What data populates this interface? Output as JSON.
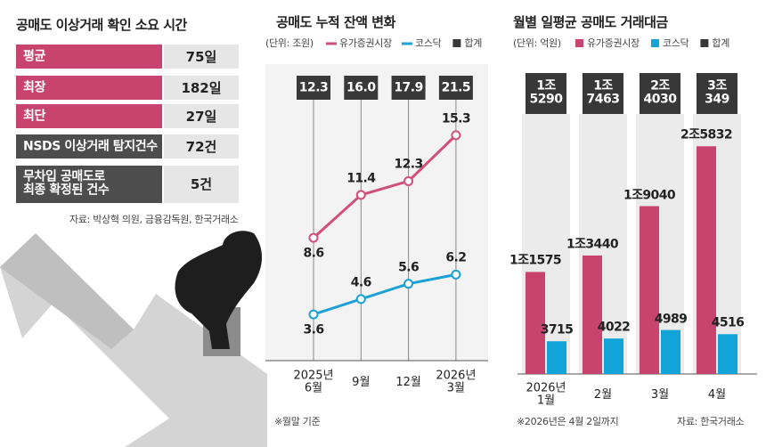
{
  "table": {
    "title": "공매도 이상거래 확인 소요 시간",
    "rows": [
      [
        "평균",
        "75일"
      ],
      [
        "최장",
        "182일"
      ],
      [
        "최단",
        "27일"
      ],
      [
        "NSDS 이상거래 탐지건수",
        "72건"
      ],
      [
        "무차입 공매도로\n최종 확정된 건수",
        "5건"
      ]
    ],
    "source": "자료: 박상혁 의원, 금융감독원, 한국거래소"
  },
  "chart_data": [
    {
      "type": "line",
      "title": "공매도 누적 잔액 변화",
      "unit": "(단위: 조원)",
      "categories": [
        "2025년\n6월",
        "9월",
        "12월",
        "2026년\n3월"
      ],
      "series": [
        {
          "name": "유가증권시장",
          "color": "#d24f7b",
          "values": [
            8.6,
            11.4,
            12.3,
            15.3
          ]
        },
        {
          "name": "코스닥",
          "color": "#1ba1d6",
          "values": [
            3.6,
            4.6,
            5.6,
            6.2
          ]
        },
        {
          "name": "합계",
          "color": "#383838",
          "mark": "box",
          "values": [
            12.3,
            16.0,
            17.9,
            21.5
          ],
          "value_labels": [
            "12.3",
            "16.0",
            "17.9",
            "21.5"
          ]
        }
      ],
      "note": "※월말 기준"
    },
    {
      "type": "bar",
      "title": "월별 일평균 공매도 거래대금",
      "unit": "(단위: 억원)",
      "categories": [
        "2026년\n1월",
        "2월",
        "3월",
        "4월"
      ],
      "series": [
        {
          "name": "유가증권시장",
          "color": "#c9436f",
          "values": [
            11575,
            13440,
            19040,
            25832
          ],
          "value_labels": [
            "1조1575",
            "1조3440",
            "1조9040",
            "2조5832"
          ]
        },
        {
          "name": "코스닥",
          "color": "#12a4d8",
          "values": [
            3715,
            4022,
            4989,
            4516
          ]
        },
        {
          "name": "합계",
          "color": "#383838",
          "mark": "box",
          "values": [
            15290,
            17463,
            24030,
            30349
          ],
          "value_labels": [
            "1조\n5290",
            "1조\n7463",
            "2조\n4030",
            "3조\n349"
          ]
        }
      ],
      "note": "※2026년은 4월 2일까지",
      "source": "자료: 한국거래소"
    }
  ]
}
